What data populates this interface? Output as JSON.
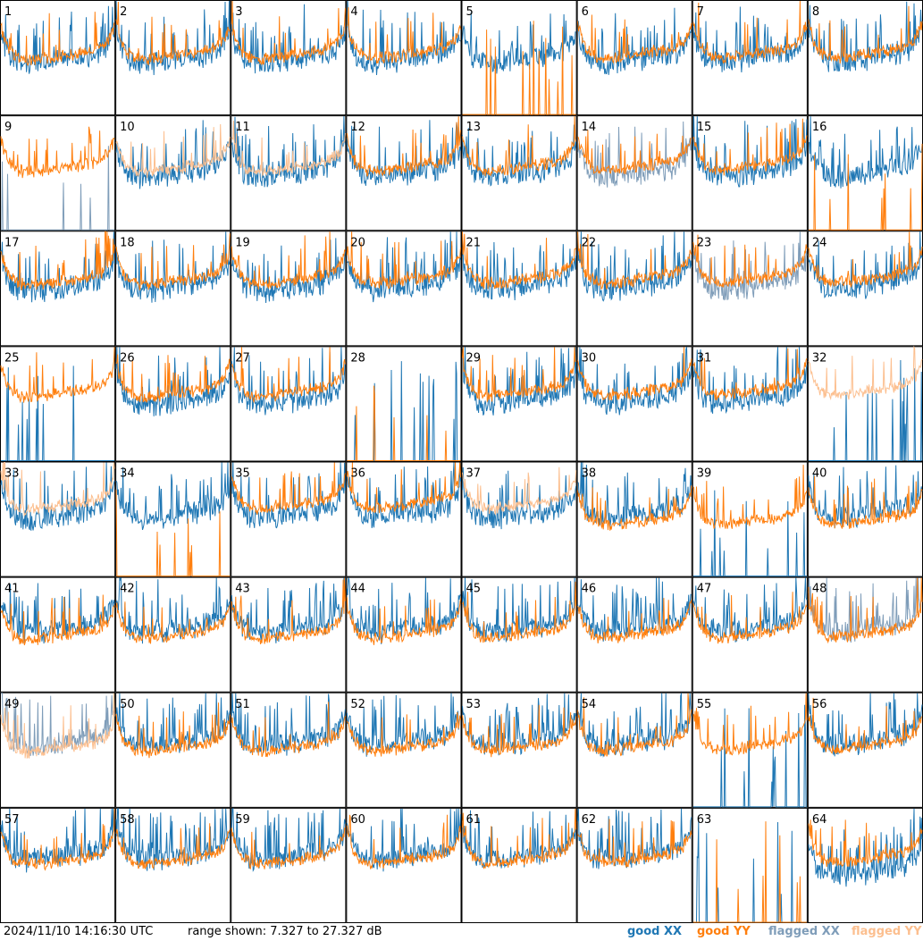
{
  "footer": {
    "timestamp": "2024/11/10 14:16:30 UTC",
    "range": "range shown: 7.327 to 27.327 dB"
  },
  "legend": [
    {
      "label": "good XX",
      "color": "#1f77b4"
    },
    {
      "label": "good YY",
      "color": "#ff7f0e"
    },
    {
      "label": "flagged XX",
      "color": "#7f9db9"
    },
    {
      "label": "flagged YY",
      "color": "#fcbf8f"
    }
  ],
  "chart_data": {
    "type": "line",
    "panels_label": [
      1,
      2,
      3,
      4,
      5,
      6,
      7,
      8,
      9,
      10,
      11,
      12,
      13,
      14,
      15,
      16,
      17,
      18,
      19,
      20,
      21,
      22,
      23,
      24,
      25,
      26,
      27,
      28,
      29,
      30,
      31,
      32,
      33,
      34,
      35,
      36,
      37,
      38,
      39,
      40,
      41,
      42,
      43,
      44,
      45,
      46,
      47,
      48,
      49,
      50,
      51,
      52,
      53,
      54,
      55,
      56,
      57,
      58,
      59,
      60,
      61,
      62,
      63,
      64
    ],
    "ylim_db": [
      7.327,
      27.327
    ],
    "series_names": [
      "good XX",
      "good YY",
      "flagged XX",
      "flagged YY"
    ],
    "panel_status": {
      "xx_flagged": [
        9,
        14,
        23,
        48,
        49
      ],
      "yy_flagged": [
        10,
        11,
        32,
        33,
        37,
        49
      ],
      "xx_dropout": [
        9,
        25,
        28,
        32,
        39,
        55,
        63
      ],
      "yy_dropout": [
        5,
        16,
        28,
        34,
        63
      ]
    }
  }
}
